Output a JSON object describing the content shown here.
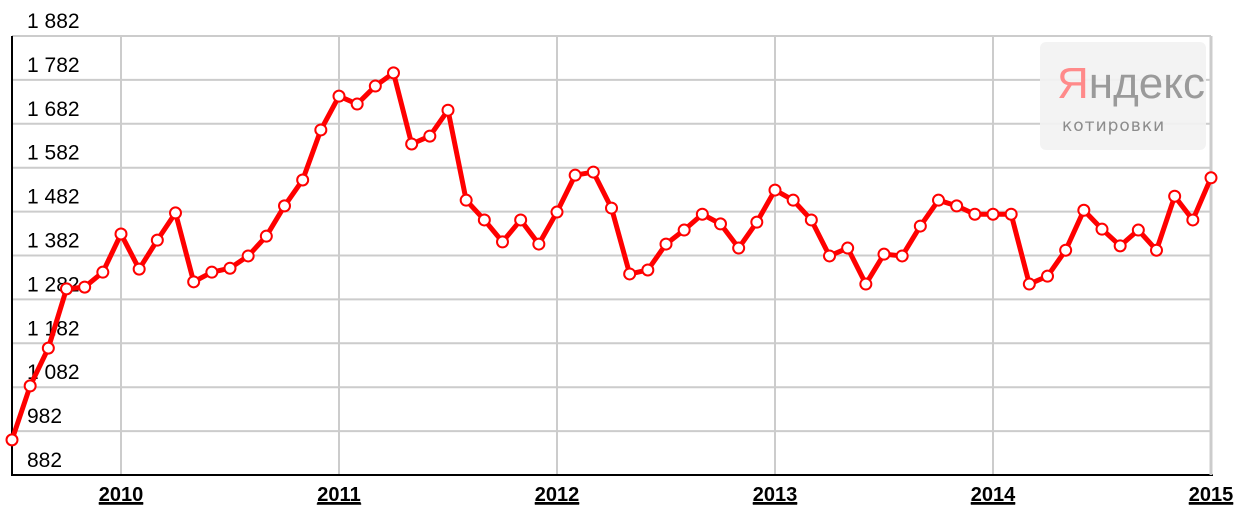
{
  "chart_data": {
    "type": "line",
    "title": "",
    "xlabel": "",
    "ylabel": "",
    "x_tick_labels": [
      "2010",
      "2011",
      "2012",
      "2013",
      "2014",
      "2015"
    ],
    "y_tick_labels": [
      "882",
      "982",
      "1 082",
      "1 182",
      "1 282",
      "1 382",
      "1 482",
      "1 582",
      "1 682",
      "1 782",
      "1 882"
    ],
    "ylim": [
      882,
      1882
    ],
    "xlim": [
      "2009-07",
      "2015-01"
    ],
    "grid": true,
    "line_color": "#ff0000",
    "marker": "open-circle",
    "series": [
      {
        "x": [
          "2009-07",
          "2009-08",
          "2009-09",
          "2009-10",
          "2009-11",
          "2009-12",
          "2010-01",
          "2010-02",
          "2010-03",
          "2010-04",
          "2010-05",
          "2010-06",
          "2010-07",
          "2010-08",
          "2010-09",
          "2010-10",
          "2010-11",
          "2010-12",
          "2011-01",
          "2011-02",
          "2011-03",
          "2011-04",
          "2011-05",
          "2011-06",
          "2011-07",
          "2011-08",
          "2011-09",
          "2011-10",
          "2011-11",
          "2011-12",
          "2012-01",
          "2012-02",
          "2012-03",
          "2012-04",
          "2012-05",
          "2012-06",
          "2012-07",
          "2012-08",
          "2012-09",
          "2012-10",
          "2012-11",
          "2012-12",
          "2013-01",
          "2013-02",
          "2013-03",
          "2013-04",
          "2013-05",
          "2013-06",
          "2013-07",
          "2013-08",
          "2013-09",
          "2013-10",
          "2013-11",
          "2013-12",
          "2014-01",
          "2014-02",
          "2014-03",
          "2014-04",
          "2014-05",
          "2014-06",
          "2014-07",
          "2014-08",
          "2014-09",
          "2014-10",
          "2014-11",
          "2014-12",
          "2015-01"
        ],
        "values": [
          962,
          1085,
          1171,
          1306,
          1310,
          1344,
          1431,
          1351,
          1417,
          1479,
          1322,
          1344,
          1353,
          1381,
          1426,
          1495,
          1554,
          1668,
          1745,
          1727,
          1768,
          1798,
          1636,
          1654,
          1713,
          1508,
          1463,
          1413,
          1463,
          1408,
          1481,
          1565,
          1572,
          1490,
          1340,
          1349,
          1408,
          1440,
          1476,
          1454,
          1399,
          1458,
          1531,
          1508,
          1463,
          1381,
          1399,
          1317,
          1385,
          1381,
          1449,
          1508,
          1495,
          1476,
          1476,
          1476,
          1317,
          1335,
          1394,
          1485,
          1442,
          1404,
          1440,
          1394,
          1517,
          1463,
          1559
        ]
      }
    ]
  },
  "watermark": {
    "brand": "Яндекс",
    "brand_first_letter": "Я",
    "brand_rest": "ндекс",
    "subtitle": "котировки",
    "first_letter_color": "#ff8080",
    "text_color": "#999999",
    "background": "#f2f2f2"
  }
}
